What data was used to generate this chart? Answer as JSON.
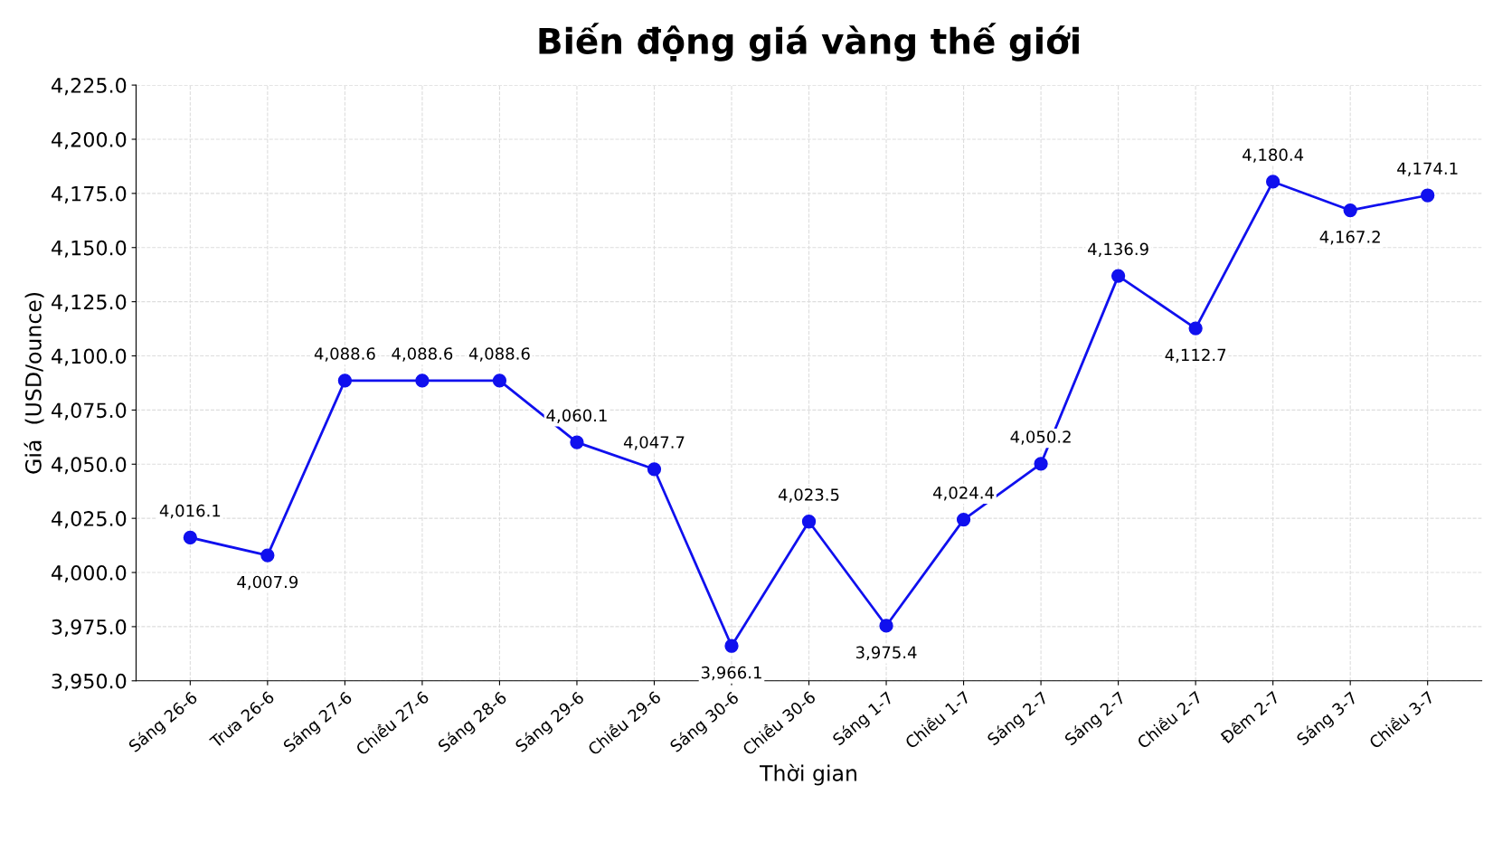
{
  "chart_data": {
    "type": "line",
    "title": "Biến động giá vàng thế giới",
    "xlabel": "Thời gian",
    "ylabel": "Giá  (USD/ounce)",
    "categories": [
      "Sáng 26-6",
      "Trưa 26-6",
      "Sáng 27-6",
      "Chiều 27-6",
      "Sáng 28-6",
      "Sáng 29-6",
      "Chiều 29-6",
      "Sáng 30-6",
      "Chiều 30-6",
      "Sáng 1-7",
      "Chiều 1-7",
      "Sáng 2-7",
      "Sáng 2-7",
      "Chiều 2-7",
      "Đêm 2-7",
      "Sáng 3-7",
      "Chiều 3-7"
    ],
    "series": [
      {
        "color": "#1010ee",
        "values": [
          4016.1,
          4007.9,
          4088.6,
          4088.6,
          4088.6,
          4060.1,
          4047.7,
          3966.1,
          4023.5,
          3975.4,
          4024.4,
          4050.2,
          4136.9,
          4112.7,
          4180.4,
          4167.2,
          4174.1
        ],
        "value_labels": [
          "4,016.1",
          "4,007.9",
          "4,088.6",
          "4,088.6",
          "4,088.6",
          "4,060.1",
          "4,047.7",
          "3,966.1",
          "4,023.5",
          "3,975.4",
          "4,024.4",
          "4,050.2",
          "4,136.9",
          "4,112.7",
          "4,180.4",
          "4,167.2",
          "4,174.1"
        ]
      }
    ],
    "ylim": [
      3950,
      4225
    ],
    "yticks": [
      {
        "value": 3950,
        "label": "3,950.0"
      },
      {
        "value": 3975,
        "label": "3,975.0"
      },
      {
        "value": 4000,
        "label": "4,000.0"
      },
      {
        "value": 4025,
        "label": "4,025.0"
      },
      {
        "value": 4050,
        "label": "4,050.0"
      },
      {
        "value": 4075,
        "label": "4,075.0"
      },
      {
        "value": 4100,
        "label": "4,100.0"
      },
      {
        "value": 4125,
        "label": "4,125.0"
      },
      {
        "value": 4150,
        "label": "4,150.0"
      },
      {
        "value": 4175,
        "label": "4,175.0"
      },
      {
        "value": 4200,
        "label": "4,200.0"
      },
      {
        "value": 4225,
        "label": "4,225.0"
      }
    ],
    "grid": true,
    "marker": "circle",
    "line_style": "solid",
    "legend": false
  }
}
